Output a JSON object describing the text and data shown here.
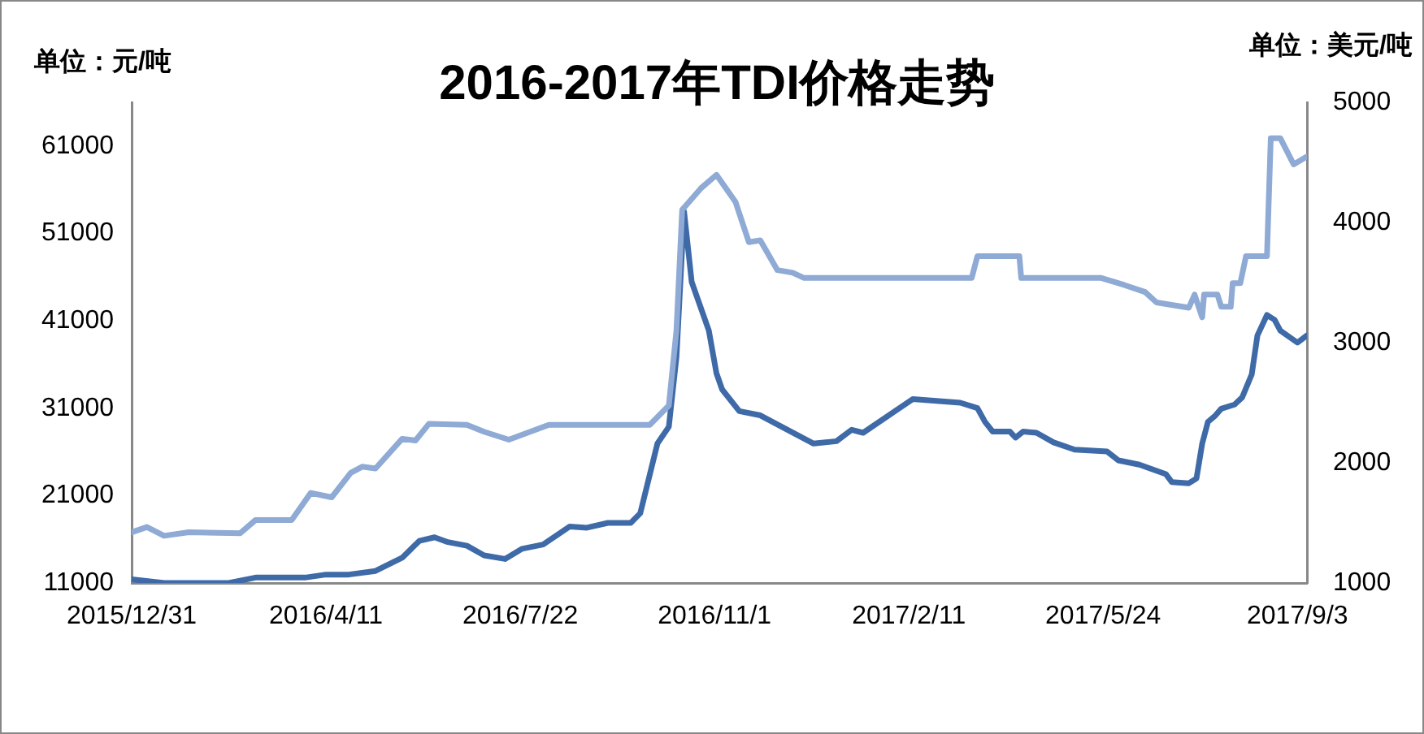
{
  "chart_data": {
    "type": "line",
    "title": "2016-2017年TDI价格走势",
    "ylabel": "单位：元/吨",
    "y2label": "单位：美元/吨",
    "marker": "none",
    "line_style": "solid",
    "grid": false,
    "xlim": [
      "2015-12-31",
      "2017-09-08"
    ],
    "xticks": [
      {
        "value": "2015-12-31",
        "label": "2015/12/31"
      },
      {
        "value": "2016-04-11",
        "label": "2016/4/11"
      },
      {
        "value": "2016-07-22",
        "label": "2016/7/22"
      },
      {
        "value": "2016-11-01",
        "label": "2016/11/1"
      },
      {
        "value": "2017-02-11",
        "label": "2017/2/11"
      },
      {
        "value": "2017-05-24",
        "label": "2017/5/24"
      },
      {
        "value": "2017-09-03",
        "label": "2017/9/3"
      }
    ],
    "ylim": [
      11000,
      66000
    ],
    "yticks": [
      11000,
      21000,
      31000,
      41000,
      51000,
      61000
    ],
    "y2lim": [
      1000,
      5000
    ],
    "y2ticks": [
      1000,
      2000,
      3000,
      4000,
      5000
    ],
    "series": [
      {
        "color": "#8eaad5",
        "axis": "y",
        "x": [
          "2015-12-31",
          "2016-01-08",
          "2016-01-17",
          "2016-01-30",
          "2016-02-26",
          "2016-03-05",
          "2016-03-24",
          "2016-04-03",
          "2016-04-14",
          "2016-04-24",
          "2016-04-30",
          "2016-05-07",
          "2016-05-21",
          "2016-05-28",
          "2016-06-04",
          "2016-06-24",
          "2016-07-03",
          "2016-07-16",
          "2016-08-06",
          "2016-09-28",
          "2016-10-08",
          "2016-10-12",
          "2016-10-15",
          "2016-10-25",
          "2016-11-02",
          "2016-11-12",
          "2016-11-19",
          "2016-11-25",
          "2016-12-04",
          "2016-12-12",
          "2016-12-18",
          "2017-03-16",
          "2017-03-19",
          "2017-04-10",
          "2017-04-11",
          "2017-05-23",
          "2017-06-04",
          "2017-06-15",
          "2017-06-21",
          "2017-07-08",
          "2017-07-11",
          "2017-07-15",
          "2017-07-16",
          "2017-07-23",
          "2017-07-25",
          "2017-07-30",
          "2017-07-31",
          "2017-08-04",
          "2017-08-07",
          "2017-08-18",
          "2017-08-20",
          "2017-08-25",
          "2017-09-01",
          "2017-09-08"
        ],
        "values": [
          16800,
          17400,
          16400,
          16800,
          16700,
          18200,
          18200,
          21300,
          20800,
          23600,
          24300,
          24100,
          27500,
          27300,
          29200,
          29100,
          28300,
          27400,
          29100,
          29100,
          31300,
          39900,
          53700,
          56200,
          57700,
          54600,
          50000,
          50200,
          46800,
          46500,
          45900,
          45900,
          48400,
          48400,
          45900,
          45900,
          45100,
          44300,
          43100,
          42500,
          44000,
          41400,
          44000,
          44000,
          42600,
          42600,
          45300,
          45300,
          48400,
          48400,
          61900,
          61900,
          58900,
          59800
        ]
      },
      {
        "color": "#3f6aa8",
        "axis": "y2",
        "x": [
          "2015-12-31",
          "2016-01-17",
          "2016-02-20",
          "2016-03-05",
          "2016-03-31",
          "2016-04-11",
          "2016-04-23",
          "2016-05-07",
          "2016-05-21",
          "2016-05-30",
          "2016-06-07",
          "2016-06-14",
          "2016-06-24",
          "2016-07-03",
          "2016-07-14",
          "2016-07-23",
          "2016-08-03",
          "2016-08-17",
          "2016-08-26",
          "2016-09-06",
          "2016-09-18",
          "2016-09-23",
          "2016-10-02",
          "2016-10-08",
          "2016-10-12",
          "2016-10-16",
          "2016-10-20",
          "2016-10-29",
          "2016-11-02",
          "2016-11-05",
          "2016-11-14",
          "2016-11-25",
          "2016-12-23",
          "2017-01-04",
          "2017-01-12",
          "2017-01-18",
          "2017-02-13",
          "2017-03-10",
          "2017-03-19",
          "2017-03-23",
          "2017-03-27",
          "2017-04-05",
          "2017-04-08",
          "2017-04-12",
          "2017-04-19",
          "2017-04-28",
          "2017-05-09",
          "2017-05-26",
          "2017-06-01",
          "2017-06-12",
          "2017-06-26",
          "2017-06-29",
          "2017-07-08",
          "2017-07-12",
          "2017-07-15",
          "2017-07-18",
          "2017-07-22",
          "2017-07-25",
          "2017-08-01",
          "2017-08-05",
          "2017-08-10",
          "2017-08-13",
          "2017-08-18",
          "2017-08-22",
          "2017-08-25",
          "2017-09-03",
          "2017-09-08"
        ],
        "values": [
          1030,
          1000,
          1000,
          1045,
          1045,
          1070,
          1070,
          1100,
          1210,
          1350,
          1380,
          1340,
          1310,
          1230,
          1200,
          1285,
          1320,
          1470,
          1460,
          1500,
          1500,
          1580,
          2160,
          2300,
          2880,
          4090,
          3505,
          3100,
          2745,
          2610,
          2430,
          2395,
          2160,
          2180,
          2275,
          2250,
          2530,
          2500,
          2455,
          2340,
          2260,
          2260,
          2210,
          2260,
          2250,
          2170,
          2110,
          2095,
          2020,
          1985,
          1905,
          1840,
          1830,
          1870,
          2160,
          2340,
          2395,
          2450,
          2485,
          2545,
          2735,
          3060,
          3230,
          3190,
          3100,
          3000,
          3060
        ]
      }
    ]
  }
}
